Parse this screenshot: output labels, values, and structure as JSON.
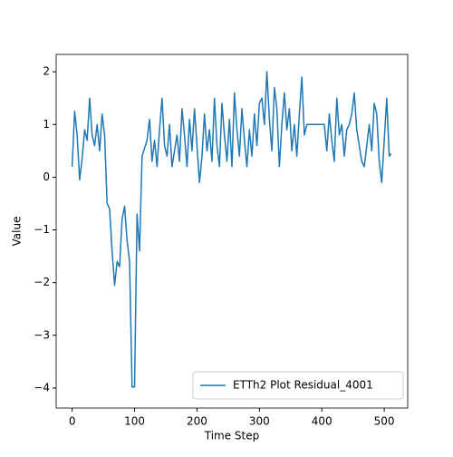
{
  "chart_data": {
    "type": "line",
    "xlabel": "Time Step",
    "ylabel": "Value",
    "x": [
      0,
      4,
      8,
      12,
      16,
      20,
      24,
      28,
      32,
      36,
      40,
      44,
      48,
      52,
      56,
      60,
      64,
      68,
      72,
      76,
      80,
      84,
      88,
      92,
      96,
      100,
      104,
      108,
      112,
      116,
      120,
      124,
      128,
      132,
      136,
      140,
      144,
      148,
      152,
      156,
      160,
      164,
      168,
      172,
      176,
      180,
      184,
      188,
      192,
      196,
      200,
      204,
      208,
      212,
      216,
      220,
      224,
      228,
      232,
      236,
      240,
      244,
      248,
      252,
      256,
      260,
      264,
      268,
      272,
      276,
      280,
      284,
      288,
      292,
      296,
      300,
      304,
      308,
      312,
      316,
      320,
      324,
      328,
      332,
      336,
      340,
      344,
      348,
      352,
      356,
      360,
      364,
      368,
      372,
      376,
      380,
      384,
      388,
      392,
      396,
      400,
      404,
      408,
      412,
      416,
      420,
      424,
      428,
      432,
      436,
      440,
      444,
      448,
      452,
      456,
      460,
      464,
      468,
      472,
      476,
      480,
      484,
      488,
      492,
      496,
      500,
      504,
      508,
      511
    ],
    "series": [
      {
        "name": "ETTh2 Plot Residual_4001",
        "color": "#1f77b4",
        "values": [
          0.2,
          1.25,
          0.8,
          -0.05,
          0.35,
          0.9,
          0.7,
          1.5,
          0.8,
          0.6,
          1.0,
          0.5,
          1.2,
          0.8,
          -0.5,
          -0.6,
          -1.4,
          -2.05,
          -1.6,
          -1.7,
          -0.8,
          -0.55,
          -1.2,
          -1.6,
          -3.98,
          -3.98,
          -0.7,
          -1.4,
          0.4,
          0.55,
          0.7,
          1.1,
          0.3,
          0.7,
          0.2,
          0.9,
          1.5,
          0.6,
          0.4,
          1.0,
          0.2,
          0.5,
          0.8,
          0.3,
          1.3,
          0.8,
          0.2,
          1.1,
          0.5,
          1.3,
          0.6,
          -0.1,
          0.4,
          1.2,
          0.5,
          0.9,
          0.3,
          1.5,
          0.6,
          0.2,
          1.4,
          0.8,
          0.3,
          1.1,
          0.2,
          1.6,
          0.9,
          0.4,
          1.3,
          0.7,
          0.2,
          0.9,
          0.4,
          1.2,
          0.6,
          1.4,
          1.5,
          1.0,
          2.0,
          1.1,
          0.5,
          1.7,
          1.3,
          0.2,
          1.0,
          1.6,
          0.9,
          1.3,
          0.5,
          1.0,
          0.4,
          1.2,
          1.9,
          0.8,
          1.0,
          1.0,
          1.0,
          1.0,
          1.0,
          1.0,
          1.0,
          1.0,
          0.5,
          1.2,
          0.7,
          0.3,
          1.5,
          0.8,
          1.0,
          0.4,
          0.9,
          1.0,
          1.2,
          1.6,
          0.9,
          0.6,
          0.3,
          0.2,
          0.6,
          1.0,
          0.5,
          1.4,
          1.2,
          0.3,
          -0.1,
          0.7,
          1.5,
          0.4,
          0.45
        ]
      }
    ],
    "xlim": [
      -25.6,
      537.6
    ],
    "xticks": [
      0,
      100,
      200,
      300,
      400,
      500
    ],
    "ylim": [
      -4.38,
      2.33
    ],
    "yticks": [
      {
        "value": -4,
        "label": "−4"
      },
      {
        "value": -3,
        "label": "−3"
      },
      {
        "value": -2,
        "label": "−2"
      },
      {
        "value": -1,
        "label": "−1"
      },
      0,
      1,
      2
    ],
    "legend": "lower right"
  }
}
